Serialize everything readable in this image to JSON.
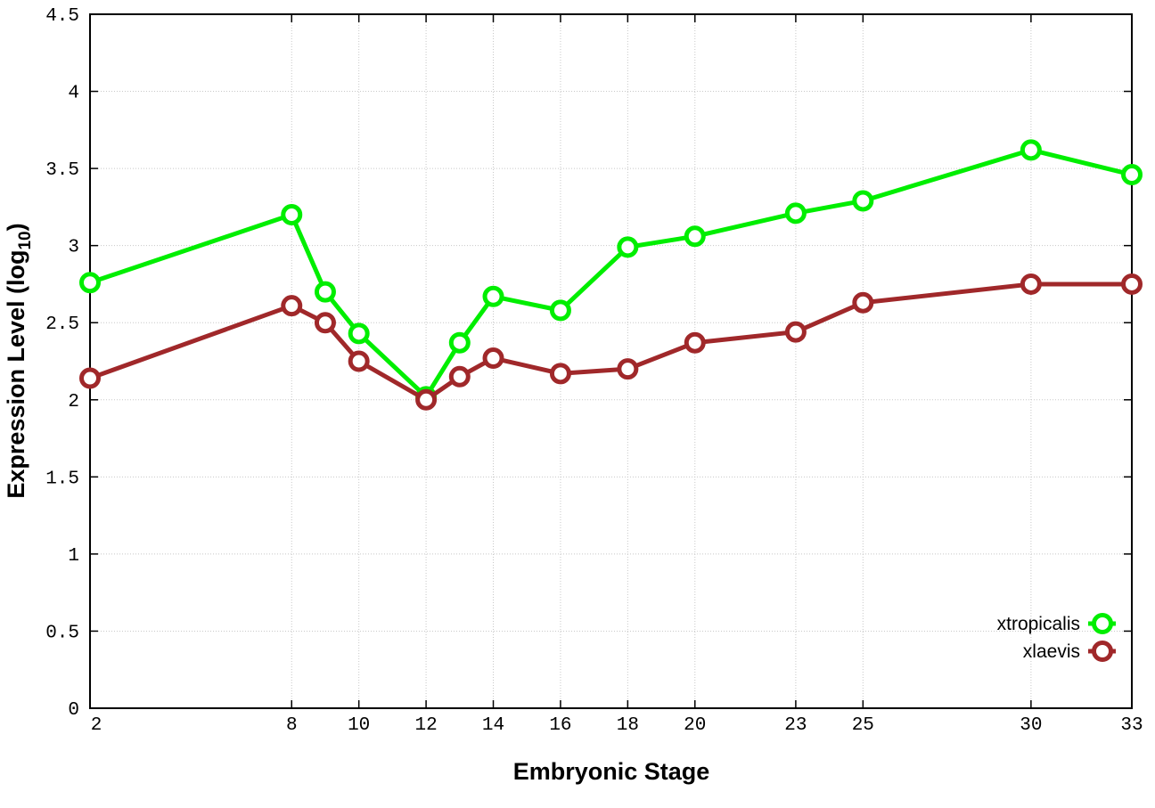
{
  "chart_data": {
    "type": "line",
    "title": "",
    "xlabel": "Embryonic Stage",
    "ylabel_main": "Expression Level (log",
    "ylabel_sub": "10",
    "ylabel_close": ")",
    "xlim": [
      2,
      33
    ],
    "ylim": [
      0,
      4.5
    ],
    "grid": true,
    "legend_position": "bottom-right",
    "xticks": [
      2,
      8,
      10,
      12,
      14,
      16,
      18,
      20,
      23,
      25,
      30,
      33
    ],
    "yticks": [
      "0",
      "0.5",
      "1",
      "1.5",
      "2",
      "2.5",
      "3",
      "3.5",
      "4",
      "4.5"
    ],
    "x": [
      2,
      8,
      9,
      10,
      12,
      13,
      14,
      16,
      18,
      20,
      23,
      25,
      30,
      33
    ],
    "series": [
      {
        "name": "xtropicalis",
        "color": "#00ee00",
        "values": [
          2.76,
          3.2,
          2.7,
          2.43,
          2.02,
          2.37,
          2.67,
          2.58,
          2.99,
          3.06,
          3.21,
          3.29,
          3.62,
          3.46
        ]
      },
      {
        "name": "xlaevis",
        "color": "#a0282a",
        "values": [
          2.14,
          2.61,
          2.5,
          2.25,
          2.0,
          2.15,
          2.27,
          2.17,
          2.2,
          2.37,
          2.44,
          2.63,
          2.75,
          2.75
        ]
      }
    ]
  }
}
